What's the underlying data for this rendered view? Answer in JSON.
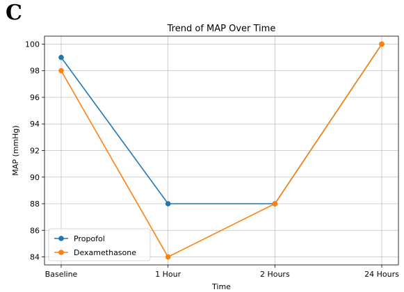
{
  "panel_label": "C",
  "chart_data": {
    "type": "line",
    "title": "Trend of MAP Over Time",
    "xlabel": "Time",
    "ylabel": "MAP (mmHg)",
    "categories": [
      "Baseline",
      "1 Hour",
      "2 Hours",
      "24 Hours"
    ],
    "ylim": [
      83.4,
      100.6
    ],
    "yticks": [
      84,
      86,
      88,
      90,
      92,
      94,
      96,
      98,
      100
    ],
    "grid": true,
    "legend_position": "lower-left",
    "series": [
      {
        "name": "Propofol",
        "color": "#1f77b4",
        "values": [
          99,
          88,
          88,
          100
        ]
      },
      {
        "name": "Dexamethasone",
        "color": "#ff7f0e",
        "values": [
          98,
          84,
          88,
          100
        ]
      }
    ]
  }
}
